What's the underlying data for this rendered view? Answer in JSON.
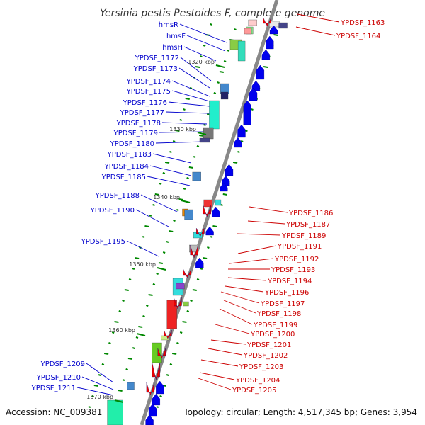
{
  "title": "Yersinia pestis Pestoides F, complete genome",
  "footer": {
    "accession": "Accession: NC_009381",
    "topology": "Topology: circular; Length: 4,517,345 bp; Genes: 3,954"
  },
  "colors": {
    "left_label": "#0000cc",
    "right_label": "#cc0000",
    "backbone": "#888888",
    "tick": "#008800",
    "forward_gene": "#0000ee",
    "reverse_gene": "#ee0000"
  },
  "scale_marks": [
    "1320 kbp",
    "1330 kbp",
    "1340 kbp",
    "1350 kbp",
    "1360 kbp",
    "1370 kbp"
  ],
  "left_labels": [
    "hmsR",
    "hmsF",
    "hmsH",
    "YPDSF_1172",
    "YPDSF_1173",
    "YPDSF_1174",
    "YPDSF_1175",
    "YPDSF_1176",
    "YPDSF_1177",
    "YPDSF_1178",
    "YPDSF_1179",
    "YPDSF_1180",
    "YPDSF_1183",
    "YPDSF_1184",
    "YPDSF_1185",
    "YPDSF_1188",
    "YPDSF_1190",
    "YPDSF_1195",
    "YPDSF_1209",
    "YPDSF_1210",
    "YPDSF_1211"
  ],
  "right_labels": [
    "YPDSF_1163",
    "YPDSF_1164",
    "YPDSF_1186",
    "YPDSF_1187",
    "YPDSF_1189",
    "YPDSF_1191",
    "YPDSF_1192",
    "YPDSF_1193",
    "YPDSF_1194",
    "YPDSF_1196",
    "YPDSF_1197",
    "YPDSF_1198",
    "YPDSF_1199",
    "YPDSF_1200",
    "YPDSF_1201",
    "YPDSF_1202",
    "YPDSF_1203",
    "YPDSF_1204",
    "YPDSF_1205"
  ]
}
